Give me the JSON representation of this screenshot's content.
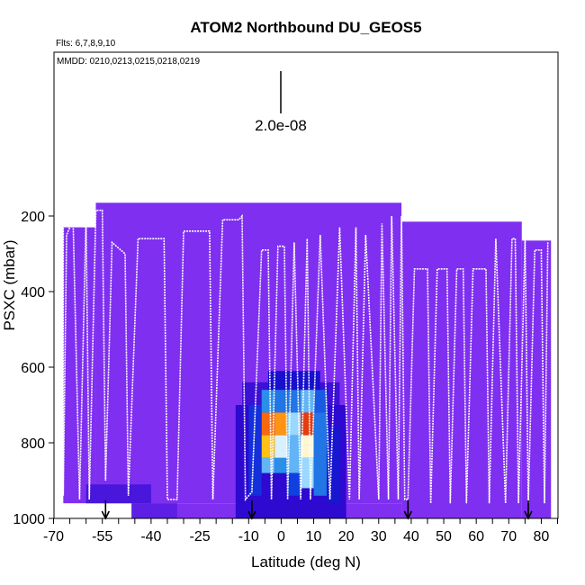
{
  "chart_data": {
    "type": "heatmap",
    "title": "ATOM2 Northbound DU_GEOS5",
    "flights_note": "Flts: 6,7,8,9,10",
    "dates_note": "MMDD: 0210,0213,0215,0218,0219",
    "scale_label": "2.0e-08",
    "xlabel": "Latitude (deg N)",
    "ylabel": "PSXC (mbar)",
    "xlim": [
      -70,
      85
    ],
    "ylim": [
      1000,
      0
    ],
    "xticks": [
      -70,
      -55,
      -40,
      -25,
      -10,
      0,
      10,
      20,
      30,
      40,
      50,
      60,
      70,
      80
    ],
    "xtick_labels": [
      "-70",
      "-55",
      "-40",
      "-25",
      "-10",
      "0",
      "10",
      "20",
      "30",
      "40",
      "50",
      "60",
      "70",
      "80"
    ],
    "yticks": [
      200,
      400,
      600,
      800,
      1000
    ],
    "ytick_labels": [
      "200",
      "400",
      "600",
      "800",
      "1000"
    ],
    "arrow_latitudes": [
      -54,
      -9,
      39,
      76
    ],
    "colors": {
      "background_field": "#7f2ff0",
      "flight_track": "#ffffff",
      "low": "#1a00c8",
      "mid": "#2a8fe8",
      "high": "#d11010"
    },
    "segments": [
      {
        "lat0": -67,
        "lat1": -57,
        "p_top": 230,
        "p_bot": 960
      },
      {
        "lat0": -57,
        "lat1": 37,
        "p_top": 165,
        "p_bot": 960
      },
      {
        "lat0": -46,
        "lat1": 37,
        "p_top": 960,
        "p_bot": 1000
      },
      {
        "lat0": 37,
        "lat1": 74,
        "p_top": 215,
        "p_bot": 1000
      },
      {
        "lat0": 74,
        "lat1": 83,
        "p_top": 265,
        "p_bot": 1000
      }
    ],
    "hotspot_cells": [
      {
        "lat0": -60,
        "lat1": -40,
        "p0": 910,
        "p1": 960,
        "level": 0.08
      },
      {
        "lat0": -46,
        "lat1": -32,
        "p0": 960,
        "p1": 1000,
        "level": 0.05
      },
      {
        "lat0": -14,
        "lat1": 20,
        "p0": 700,
        "p1": 1000,
        "level": 0.12
      },
      {
        "lat0": -12,
        "lat1": 18,
        "p0": 640,
        "p1": 700,
        "level": 0.1
      },
      {
        "lat0": -4,
        "lat1": 12,
        "p0": 610,
        "p1": 660,
        "level": 0.2
      },
      {
        "lat0": -10,
        "lat1": -6,
        "p0": 700,
        "p1": 940,
        "level": 0.3
      },
      {
        "lat0": -6,
        "lat1": -2,
        "p0": 660,
        "p1": 720,
        "level": 0.5
      },
      {
        "lat0": -6,
        "lat1": -2,
        "p0": 720,
        "p1": 780,
        "level": 0.9
      },
      {
        "lat0": -6,
        "lat1": -2,
        "p0": 780,
        "p1": 840,
        "level": 0.8
      },
      {
        "lat0": -6,
        "lat1": -2,
        "p0": 840,
        "p1": 880,
        "level": 0.55
      },
      {
        "lat0": -2,
        "lat1": 2,
        "p0": 660,
        "p1": 720,
        "level": 0.45
      },
      {
        "lat0": -2,
        "lat1": 2,
        "p0": 720,
        "p1": 780,
        "level": 0.85
      },
      {
        "lat0": -2,
        "lat1": 2,
        "p0": 780,
        "p1": 840,
        "level": 0.65
      },
      {
        "lat0": -2,
        "lat1": 2,
        "p0": 840,
        "p1": 880,
        "level": 0.5
      },
      {
        "lat0": 2,
        "lat1": 6,
        "p0": 660,
        "p1": 720,
        "level": 0.45
      },
      {
        "lat0": 2,
        "lat1": 6,
        "p0": 720,
        "p1": 780,
        "level": 0.6
      },
      {
        "lat0": 2,
        "lat1": 6,
        "p0": 780,
        "p1": 880,
        "level": 0.55
      },
      {
        "lat0": 2,
        "lat1": 6,
        "p0": 880,
        "p1": 940,
        "level": 0.35
      },
      {
        "lat0": 6,
        "lat1": 10,
        "p0": 660,
        "p1": 720,
        "level": 0.55
      },
      {
        "lat0": 6,
        "lat1": 10,
        "p0": 720,
        "p1": 780,
        "level": 0.95
      },
      {
        "lat0": 6,
        "lat1": 10,
        "p0": 780,
        "p1": 840,
        "level": 0.7
      },
      {
        "lat0": 6,
        "lat1": 10,
        "p0": 840,
        "p1": 920,
        "level": 0.6
      },
      {
        "lat0": 10,
        "lat1": 14,
        "p0": 660,
        "p1": 720,
        "level": 0.4
      },
      {
        "lat0": 10,
        "lat1": 14,
        "p0": 720,
        "p1": 940,
        "level": 0.45
      },
      {
        "lat0": 14,
        "lat1": 18,
        "p0": 760,
        "p1": 960,
        "level": 0.22
      }
    ],
    "flight_track": [
      [
        -67,
        210
      ],
      [
        -67,
        940
      ],
      [
        -66,
        250
      ],
      [
        -64,
        210
      ],
      [
        -62,
        950
      ],
      [
        -60,
        200
      ],
      [
        -59,
        950
      ],
      [
        -57,
        185
      ],
      [
        -55,
        185
      ],
      [
        -54,
        900
      ],
      [
        -52,
        270
      ],
      [
        -48,
        300
      ],
      [
        -47,
        940
      ],
      [
        -44,
        260
      ],
      [
        -36,
        260
      ],
      [
        -35,
        950
      ],
      [
        -32,
        950
      ],
      [
        -30,
        240
      ],
      [
        -22,
        240
      ],
      [
        -21,
        950
      ],
      [
        -18,
        210
      ],
      [
        -13,
        210
      ],
      [
        -12,
        200
      ],
      [
        -11,
        950
      ],
      [
        -9,
        930
      ],
      [
        -6,
        290
      ],
      [
        -4,
        290
      ],
      [
        -3,
        950
      ],
      [
        -1,
        280
      ],
      [
        1,
        280
      ],
      [
        2,
        950
      ],
      [
        4,
        270
      ],
      [
        6,
        950
      ],
      [
        8,
        260
      ],
      [
        9,
        950
      ],
      [
        12,
        250
      ],
      [
        15,
        950
      ],
      [
        18,
        230
      ],
      [
        21,
        950
      ],
      [
        23,
        230
      ],
      [
        24,
        950
      ],
      [
        26,
        250
      ],
      [
        30,
        950
      ],
      [
        31,
        220
      ],
      [
        33,
        950
      ],
      [
        34,
        200
      ],
      [
        36,
        950
      ],
      [
        37,
        200
      ],
      [
        38,
        950
      ],
      [
        39,
        950
      ],
      [
        41,
        340
      ],
      [
        45,
        340
      ],
      [
        46,
        960
      ],
      [
        48,
        340
      ],
      [
        51,
        340
      ],
      [
        52,
        960
      ],
      [
        54,
        340
      ],
      [
        56,
        340
      ],
      [
        57,
        960
      ],
      [
        59,
        340
      ],
      [
        63,
        340
      ],
      [
        64,
        960
      ],
      [
        66,
        260
      ],
      [
        69,
        960
      ],
      [
        71,
        260
      ],
      [
        72,
        260
      ],
      [
        73,
        960
      ],
      [
        75,
        260
      ],
      [
        76,
        960
      ],
      [
        78,
        290
      ],
      [
        80,
        290
      ],
      [
        81,
        960
      ],
      [
        82,
        270
      ]
    ]
  }
}
